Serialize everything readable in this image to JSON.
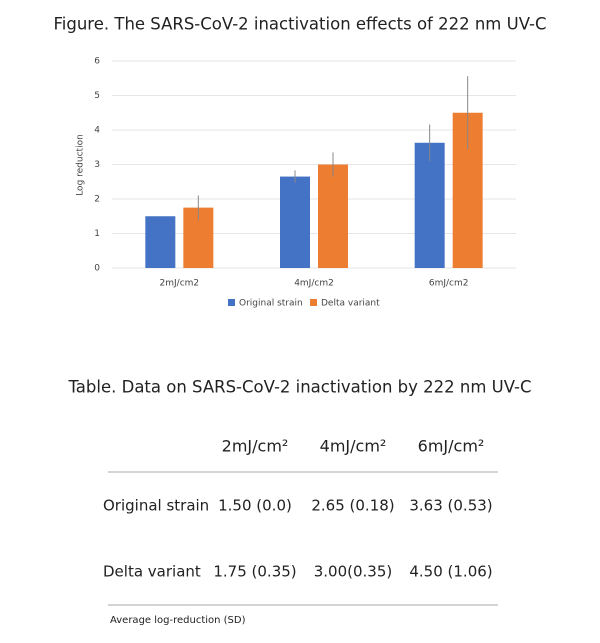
{
  "chart_data": {
    "type": "bar",
    "title": "Figure. The SARS-CoV-2 inactivation effects of 222 nm UV-C",
    "y_label": "Log reduction",
    "categories": [
      "2mJ/cm2",
      "4mJ/cm2",
      "6mJ/cm2"
    ],
    "series": [
      {
        "name": "Original strain",
        "color": "#4472c4",
        "values": [
          1.5,
          2.65,
          3.63
        ],
        "errors": [
          0,
          0.18,
          0.53
        ]
      },
      {
        "name": "Delta variant",
        "color": "#ed7d31",
        "values": [
          1.75,
          3.0,
          4.5
        ],
        "errors": [
          0.35,
          0.35,
          1.06
        ]
      }
    ],
    "ylim": [
      0,
      6
    ],
    "yticks": [
      0,
      1,
      2,
      3,
      4,
      5,
      6
    ],
    "grid": true,
    "legend": "bottom"
  },
  "table": {
    "title": "Table. Data on SARS-CoV-2 inactivation by 222 nm UV-C",
    "columns": [
      "2mJ/cm²",
      "4mJ/cm²",
      "6mJ/cm²"
    ],
    "rows": [
      [
        "Original strain",
        "1.50 (0.0)",
        "2.65 (0.18)",
        "3.63 (0.53)"
      ],
      [
        "Delta variant",
        "1.75 (0.35)",
        "3.00(0.35)",
        "4.50 (1.06)"
      ]
    ],
    "note": "Average log-reduction (SD)"
  }
}
